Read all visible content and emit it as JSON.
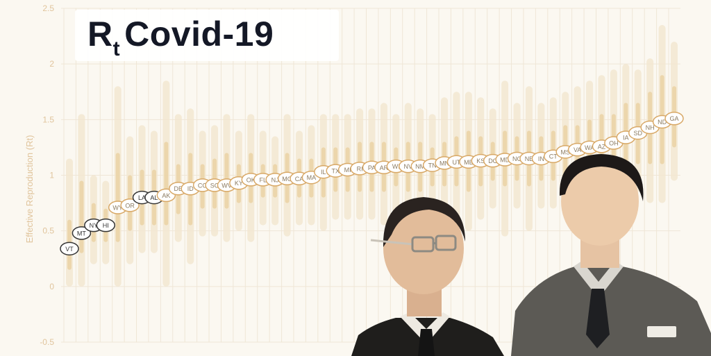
{
  "title": {
    "main": "R",
    "sub": "t",
    "rest": "Covid-19"
  },
  "colors": {
    "background": "#fbf8f1",
    "outer_band": "#f2e6d0",
    "inner_band": "#ead2a4",
    "marker_stroke": "#d8a866",
    "marker_fill": "#ffffff",
    "label_text": "#8a7a60",
    "dark_marker": "#333333",
    "grid": "#efe6d6",
    "axis_text": "#e0c49c"
  },
  "chart_data": {
    "type": "scatter",
    "title": "Rt Covid-19",
    "xlabel": "",
    "ylabel": "Effective Reproduction (Rt)",
    "ylim": [
      -0.5,
      2.5
    ],
    "yticks": [
      "-0.5",
      "0",
      "0.5",
      "1",
      "1.5",
      "2",
      "2.5"
    ],
    "grid": true,
    "states": [
      "VT",
      "MT",
      "NY",
      "HI",
      "WY",
      "OR",
      "LA",
      "AL",
      "AK",
      "DE",
      "ID",
      "CO",
      "SC",
      "WV",
      "KY",
      "OK",
      "FL",
      "NJ",
      "MO",
      "CA",
      "MA",
      "IL",
      "TX",
      "MI",
      "RI",
      "PA",
      "AR",
      "WI",
      "NV",
      "NM",
      "TN",
      "MN",
      "UT",
      "ME",
      "KS",
      "DC",
      "MD",
      "NC",
      "NE",
      "IN",
      "CT",
      "MS",
      "VA",
      "WA",
      "AZ",
      "OH",
      "IA",
      "SD",
      "NH",
      "ND",
      "GA"
    ],
    "rt": [
      0.34,
      0.48,
      0.55,
      0.55,
      0.71,
      0.73,
      0.8,
      0.8,
      0.82,
      0.88,
      0.88,
      0.91,
      0.91,
      0.91,
      0.93,
      0.96,
      0.96,
      0.96,
      0.97,
      0.97,
      0.98,
      1.03,
      1.04,
      1.05,
      1.06,
      1.07,
      1.07,
      1.08,
      1.08,
      1.08,
      1.09,
      1.11,
      1.12,
      1.12,
      1.13,
      1.13,
      1.14,
      1.15,
      1.15,
      1.15,
      1.17,
      1.21,
      1.23,
      1.25,
      1.26,
      1.29,
      1.34,
      1.38,
      1.43,
      1.48,
      1.51
    ],
    "ci_inner": [
      [
        0.15,
        0.6
      ],
      [
        0.3,
        0.95
      ],
      [
        0.4,
        0.75
      ],
      [
        0.4,
        0.7
      ],
      [
        0.4,
        1.2
      ],
      [
        0.5,
        1.0
      ],
      [
        0.55,
        1.05
      ],
      [
        0.55,
        1.05
      ],
      [
        0.55,
        1.3
      ],
      [
        0.65,
        1.1
      ],
      [
        0.55,
        1.2
      ],
      [
        0.7,
        1.1
      ],
      [
        0.7,
        1.15
      ],
      [
        0.7,
        1.2
      ],
      [
        0.75,
        1.1
      ],
      [
        0.75,
        1.2
      ],
      [
        0.8,
        1.1
      ],
      [
        0.8,
        1.1
      ],
      [
        0.75,
        1.2
      ],
      [
        0.8,
        1.15
      ],
      [
        0.8,
        1.15
      ],
      [
        0.8,
        1.25
      ],
      [
        0.85,
        1.25
      ],
      [
        0.85,
        1.25
      ],
      [
        0.85,
        1.3
      ],
      [
        0.85,
        1.3
      ],
      [
        0.85,
        1.3
      ],
      [
        0.9,
        1.25
      ],
      [
        0.85,
        1.3
      ],
      [
        0.85,
        1.3
      ],
      [
        0.9,
        1.25
      ],
      [
        0.9,
        1.3
      ],
      [
        0.9,
        1.35
      ],
      [
        0.85,
        1.4
      ],
      [
        0.9,
        1.35
      ],
      [
        0.95,
        1.3
      ],
      [
        0.9,
        1.4
      ],
      [
        0.95,
        1.35
      ],
      [
        0.9,
        1.4
      ],
      [
        0.95,
        1.35
      ],
      [
        0.95,
        1.4
      ],
      [
        1.0,
        1.45
      ],
      [
        1.0,
        1.45
      ],
      [
        1.0,
        1.5
      ],
      [
        1.0,
        1.55
      ],
      [
        1.05,
        1.55
      ],
      [
        1.05,
        1.65
      ],
      [
        1.1,
        1.65
      ],
      [
        1.1,
        1.75
      ],
      [
        1.1,
        1.9
      ],
      [
        1.25,
        1.8
      ]
    ],
    "ci_outer": [
      [
        0.0,
        1.15
      ],
      [
        0.0,
        1.55
      ],
      [
        0.2,
        1.0
      ],
      [
        0.2,
        0.95
      ],
      [
        0.0,
        1.8
      ],
      [
        0.2,
        1.35
      ],
      [
        0.3,
        1.45
      ],
      [
        0.3,
        1.4
      ],
      [
        0.0,
        1.85
      ],
      [
        0.4,
        1.55
      ],
      [
        0.2,
        1.6
      ],
      [
        0.45,
        1.4
      ],
      [
        0.45,
        1.45
      ],
      [
        0.4,
        1.55
      ],
      [
        0.5,
        1.4
      ],
      [
        0.4,
        1.55
      ],
      [
        0.55,
        1.4
      ],
      [
        0.55,
        1.35
      ],
      [
        0.45,
        1.55
      ],
      [
        0.55,
        1.4
      ],
      [
        0.55,
        1.45
      ],
      [
        0.5,
        1.55
      ],
      [
        0.6,
        1.55
      ],
      [
        0.6,
        1.55
      ],
      [
        0.6,
        1.6
      ],
      [
        0.6,
        1.6
      ],
      [
        0.55,
        1.65
      ],
      [
        0.65,
        1.55
      ],
      [
        0.55,
        1.65
      ],
      [
        0.55,
        1.6
      ],
      [
        0.65,
        1.55
      ],
      [
        0.6,
        1.7
      ],
      [
        0.6,
        1.75
      ],
      [
        0.5,
        1.75
      ],
      [
        0.6,
        1.7
      ],
      [
        0.7,
        1.6
      ],
      [
        0.45,
        1.85
      ],
      [
        0.7,
        1.65
      ],
      [
        0.5,
        1.8
      ],
      [
        0.7,
        1.65
      ],
      [
        0.7,
        1.7
      ],
      [
        0.75,
        1.75
      ],
      [
        0.75,
        1.8
      ],
      [
        0.75,
        1.85
      ],
      [
        0.7,
        1.9
      ],
      [
        0.8,
        1.95
      ],
      [
        0.75,
        2.0
      ],
      [
        0.85,
        1.95
      ],
      [
        0.75,
        2.05
      ],
      [
        0.75,
        2.35
      ],
      [
        0.95,
        2.2
      ]
    ]
  }
}
